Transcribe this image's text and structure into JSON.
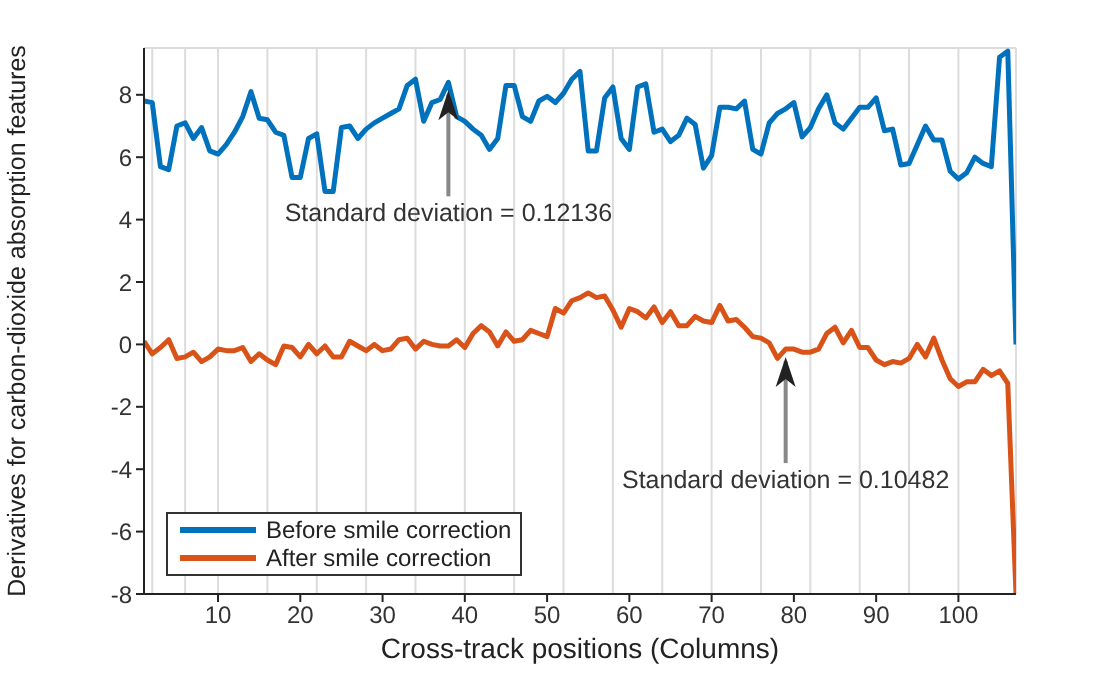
{
  "chart_data": {
    "type": "line",
    "xlabel": "Cross-track positions (Columns)",
    "ylabel": "Derivatives for carbon-dioxide absorption features",
    "x": [
      1,
      2,
      3,
      4,
      5,
      6,
      7,
      8,
      9,
      10,
      11,
      12,
      13,
      14,
      15,
      16,
      17,
      18,
      19,
      20,
      21,
      22,
      23,
      24,
      25,
      26,
      27,
      28,
      29,
      30,
      31,
      32,
      33,
      34,
      35,
      36,
      37,
      38,
      39,
      40,
      41,
      42,
      43,
      44,
      45,
      46,
      47,
      48,
      49,
      50,
      51,
      52,
      53,
      54,
      55,
      56,
      57,
      58,
      59,
      60,
      61,
      62,
      63,
      64,
      65,
      66,
      67,
      68,
      69,
      70,
      71,
      72,
      73,
      74,
      75,
      76,
      77,
      78,
      79,
      80,
      81,
      82,
      83,
      84,
      85,
      86,
      87,
      88,
      89,
      90,
      91,
      92,
      93,
      94,
      95,
      96,
      97,
      98,
      99,
      100,
      101,
      102,
      103,
      104,
      105,
      106,
      107
    ],
    "series": [
      {
        "name": "Before smile correction",
        "color": "#0072bd",
        "values": [
          7.8,
          7.75,
          5.7,
          5.6,
          7.0,
          7.1,
          6.6,
          6.95,
          6.2,
          6.1,
          6.4,
          6.8,
          7.3,
          8.1,
          7.25,
          7.2,
          6.8,
          6.7,
          5.35,
          5.35,
          6.6,
          6.75,
          4.9,
          4.9,
          6.95,
          7.0,
          6.6,
          6.9,
          7.1,
          7.25,
          7.4,
          7.55,
          8.3,
          8.5,
          7.15,
          7.75,
          7.85,
          8.4,
          7.3,
          7.15,
          6.9,
          6.7,
          6.25,
          6.6,
          8.3,
          8.3,
          7.3,
          7.15,
          7.8,
          7.95,
          7.75,
          8.05,
          8.5,
          8.75,
          6.2,
          6.2,
          7.9,
          8.25,
          6.6,
          6.25,
          8.25,
          8.35,
          6.8,
          6.9,
          6.5,
          6.7,
          7.25,
          7.05,
          5.65,
          6.05,
          7.6,
          7.6,
          7.55,
          7.8,
          6.25,
          6.1,
          7.1,
          7.4,
          7.55,
          7.75,
          6.65,
          6.95,
          7.55,
          8.0,
          7.1,
          6.9,
          7.25,
          7.6,
          7.6,
          7.9,
          6.85,
          6.9,
          5.75,
          5.8,
          6.4,
          7.0,
          6.55,
          6.55,
          5.55,
          5.3,
          5.5,
          6.0,
          5.8,
          5.7,
          9.2,
          9.4,
          0
        ]
      },
      {
        "name": "After smile correction",
        "color": "#d95319",
        "values": [
          0.1,
          -0.3,
          -0.1,
          0.15,
          -0.45,
          -0.4,
          -0.25,
          -0.55,
          -0.4,
          -0.15,
          -0.2,
          -0.2,
          -0.1,
          -0.55,
          -0.3,
          -0.5,
          -0.65,
          -0.05,
          -0.1,
          -0.4,
          0,
          -0.3,
          -0.05,
          -0.4,
          -0.4,
          0.1,
          -0.05,
          -0.2,
          0,
          -0.2,
          -0.15,
          0.15,
          0.2,
          -0.15,
          0.1,
          0,
          -0.05,
          -0.05,
          0.15,
          -0.1,
          0.35,
          0.6,
          0.4,
          -0.05,
          0.4,
          0.1,
          0.15,
          0.45,
          0.35,
          0.25,
          1.15,
          1.0,
          1.4,
          1.5,
          1.65,
          1.5,
          1.55,
          1.1,
          0.55,
          1.15,
          1.05,
          0.85,
          1.2,
          0.7,
          1.05,
          0.6,
          0.6,
          0.9,
          0.75,
          0.7,
          1.25,
          0.75,
          0.8,
          0.55,
          0.25,
          0.2,
          0.05,
          -0.45,
          -0.15,
          -0.15,
          -0.25,
          -0.25,
          -0.15,
          0.35,
          0.55,
          0.05,
          0.45,
          -0.1,
          -0.1,
          -0.5,
          -0.65,
          -0.55,
          -0.6,
          -0.45,
          0,
          -0.4,
          0.2,
          -0.5,
          -1.1,
          -1.35,
          -1.2,
          -1.2,
          -0.8,
          -1.0,
          -0.85,
          -1.25,
          -8
        ]
      }
    ],
    "xlim": [
      1,
      107
    ],
    "xticks": [
      10,
      20,
      30,
      40,
      50,
      60,
      70,
      80,
      90,
      100
    ],
    "ylim": [
      -8,
      9.5
    ],
    "yticks": [
      -8,
      -6,
      -4,
      -2,
      0,
      2,
      4,
      6,
      8
    ],
    "grid": true,
    "legend": "bottom left",
    "line_style": "solid",
    "marker": "none",
    "annotations": [
      {
        "text": "Standard deviation = 0.12136",
        "x": 38,
        "y": 8.4
      },
      {
        "text": "Standard deviation = 0.10482",
        "x": 79,
        "y": -0.15
      }
    ]
  }
}
